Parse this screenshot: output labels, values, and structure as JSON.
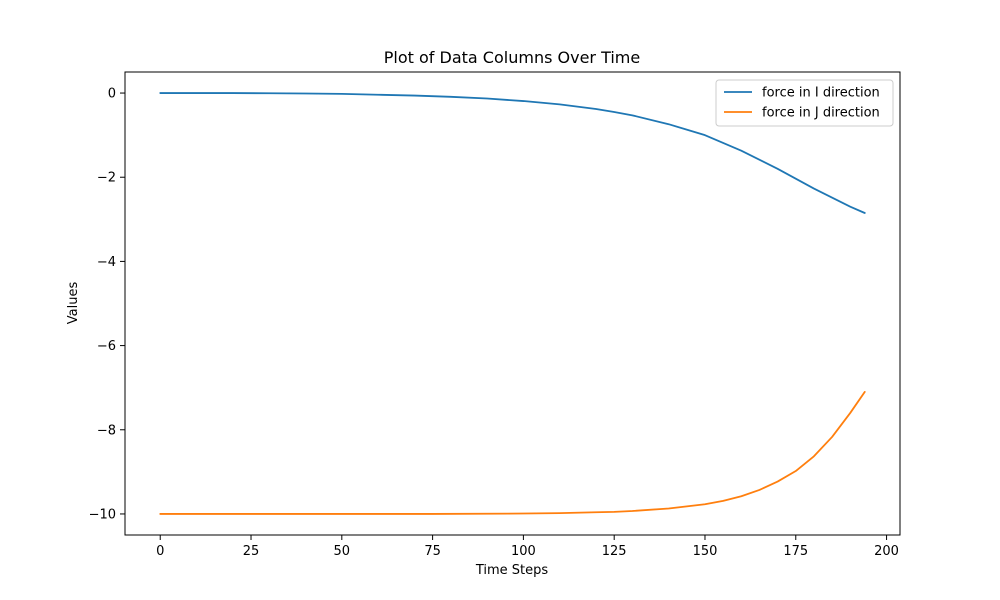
{
  "chart_data": {
    "type": "line",
    "title": "Plot of Data Columns Over Time",
    "xlabel": "Time Steps",
    "ylabel": "Values",
    "xlim": [
      -9.7,
      203.7
    ],
    "ylim": [
      -10.5,
      0.5
    ],
    "xticks": [
      0,
      25,
      50,
      75,
      100,
      125,
      150,
      175,
      200
    ],
    "yticks": [
      0,
      -2,
      -4,
      -6,
      -8,
      -10
    ],
    "xtick_labels": [
      "0",
      "25",
      "50",
      "75",
      "100",
      "125",
      "150",
      "175",
      "200"
    ],
    "ytick_labels": [
      "0",
      "−2",
      "−4",
      "−6",
      "−8",
      "−10"
    ],
    "grid": false,
    "legend_position": "top-right",
    "series": [
      {
        "name": "force in I direction",
        "color": "#1f77b4",
        "x": [
          0,
          10,
          20,
          30,
          40,
          50,
          60,
          70,
          80,
          90,
          100,
          110,
          120,
          125,
          130,
          140,
          150,
          160,
          170,
          180,
          190,
          194
        ],
        "y": [
          0,
          0,
          0,
          -0.005,
          -0.01,
          -0.02,
          -0.04,
          -0.06,
          -0.09,
          -0.13,
          -0.19,
          -0.27,
          -0.38,
          -0.45,
          -0.53,
          -0.74,
          -1.0,
          -1.37,
          -1.8,
          -2.27,
          -2.7,
          -2.85
        ]
      },
      {
        "name": "force in J direction",
        "color": "#ff7f0e",
        "x": [
          0,
          25,
          50,
          75,
          100,
          110,
          120,
          125,
          130,
          140,
          150,
          155,
          160,
          165,
          170,
          175,
          180,
          185,
          190,
          194
        ],
        "y": [
          -10,
          -10,
          -10,
          -10,
          -9.99,
          -9.98,
          -9.96,
          -9.95,
          -9.93,
          -9.87,
          -9.77,
          -9.69,
          -9.58,
          -9.43,
          -9.23,
          -8.98,
          -8.63,
          -8.17,
          -7.6,
          -7.1
        ]
      }
    ]
  }
}
